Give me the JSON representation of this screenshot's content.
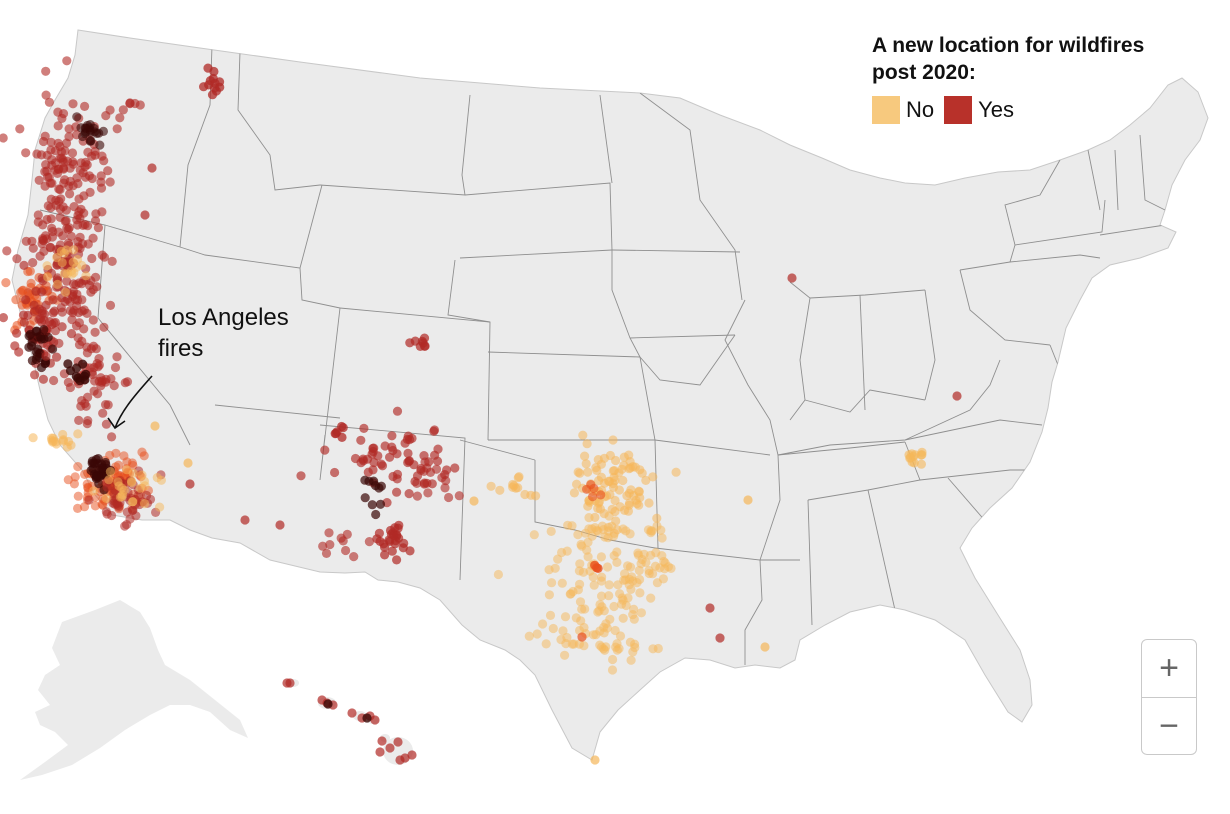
{
  "legend": {
    "title_line1": "A new location for wildfires",
    "title_line2": "post 2020:",
    "items": [
      {
        "label": "No",
        "color": "#f7c97e"
      },
      {
        "label": "Yes",
        "color": "#b8312a"
      }
    ]
  },
  "annotation": {
    "line1": "Los Angeles",
    "line2": "fires"
  },
  "zoom": {
    "in_label": "+",
    "out_label": "−"
  },
  "colors": {
    "land": "#ebebeb",
    "border": "#8f8f8f",
    "no": "#f5b75a",
    "yes": "#b02a25",
    "dense": "#3a0705"
  }
}
